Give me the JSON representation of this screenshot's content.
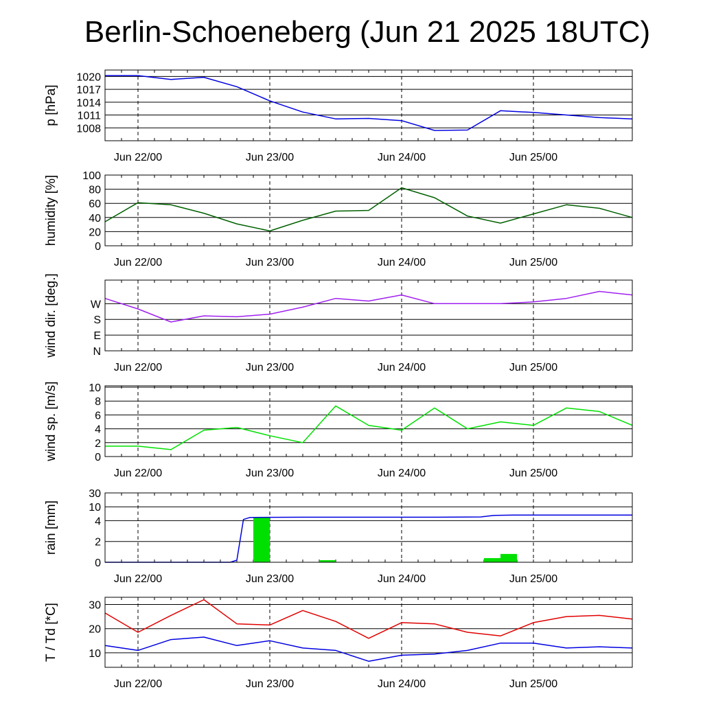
{
  "title": "Berlin-Schoeneberg (Jun 21 2025 18UTC)",
  "chart_data": [
    {
      "type": "line",
      "ylabel": "p [hPa]",
      "ylim": [
        1005,
        1021.5
      ],
      "yticks": [
        1008,
        1011,
        1014,
        1017,
        1020
      ],
      "ytick_labels": [
        "1008",
        "1011",
        "1014",
        "1017",
        "1020"
      ],
      "x_tick_labels": [
        "Jun 22/00",
        "Jun 23/00",
        "Jun 24/00",
        "Jun 25/00"
      ],
      "grid": "horizontal at y ticks, dashed vertical at midnight",
      "series": [
        {
          "color": "#0000e0",
          "x": [
            0,
            0.25,
            0.5,
            0.75,
            1.0,
            1.25,
            1.5,
            1.75,
            2.0,
            2.25,
            2.5,
            2.75,
            3.0,
            3.25,
            3.5,
            3.75,
            4.0
          ],
          "y": [
            1020.2,
            1020.2,
            1019.3,
            1019.8,
            1017.6,
            1014.3,
            1011.7,
            1010.1,
            1010.2,
            1009.7,
            1007.4,
            1007.5,
            1012.0,
            1011.6,
            1011.0,
            1010.4,
            1010.1
          ]
        }
      ]
    },
    {
      "type": "line",
      "ylabel": "humidity [%]",
      "ylim": [
        0,
        100
      ],
      "yticks": [
        0,
        20,
        40,
        60,
        80,
        100
      ],
      "ytick_labels": [
        "0",
        "20",
        "40",
        "60",
        "80",
        "100"
      ],
      "x_tick_labels": [
        "Jun 22/00",
        "Jun 23/00",
        "Jun 24/00",
        "Jun 25/00"
      ],
      "series": [
        {
          "color": "#006000",
          "x": [
            0,
            0.25,
            0.5,
            0.75,
            1.0,
            1.25,
            1.5,
            1.75,
            2.0,
            2.25,
            2.5,
            2.75,
            3.0,
            3.25,
            3.5,
            3.75,
            4.0
          ],
          "y": [
            34,
            61,
            58,
            46,
            31,
            21,
            36,
            49,
            50,
            82,
            68,
            42,
            32,
            45,
            58,
            53,
            40
          ]
        }
      ]
    },
    {
      "type": "line",
      "ylabel": "wind dir. [deg.]",
      "ylim": [
        0,
        405
      ],
      "yticks": [
        0,
        90,
        180,
        270
      ],
      "ytick_labels": [
        "N",
        "E",
        "S",
        "W"
      ],
      "x_tick_labels": [
        "Jun 22/00",
        "Jun 23/00",
        "Jun 24/00",
        "Jun 25/00"
      ],
      "series": [
        {
          "color": "#a020f0",
          "x": [
            0,
            0.25,
            0.5,
            0.75,
            1.0,
            1.25,
            1.5,
            1.75,
            2.0,
            2.25,
            2.5,
            2.75,
            3.0,
            3.25,
            3.5,
            3.75,
            4.0
          ],
          "y": [
            300,
            240,
            165,
            200,
            195,
            210,
            250,
            300,
            285,
            320,
            270,
            270,
            270,
            280,
            300,
            340,
            320
          ]
        }
      ]
    },
    {
      "type": "line",
      "ylabel": "wind sp. [m/s]",
      "ylim": [
        0,
        10.2
      ],
      "yticks": [
        0,
        2,
        4,
        6,
        8,
        10
      ],
      "ytick_labels": [
        "0",
        "2",
        "4",
        "6",
        "8",
        "10"
      ],
      "x_tick_labels": [
        "Jun 22/00",
        "Jun 23/00",
        "Jun 24/00",
        "Jun 25/00"
      ],
      "series": [
        {
          "color": "#00e000",
          "x": [
            0,
            0.25,
            0.5,
            0.75,
            1.0,
            1.25,
            1.5,
            1.75,
            2.0,
            2.25,
            2.5,
            2.75,
            3.0,
            3.25,
            3.5,
            3.75,
            4.0
          ],
          "y": [
            1.5,
            1.5,
            1.0,
            3.8,
            4.2,
            3.0,
            2.0,
            7.3,
            4.5,
            3.8,
            7.0,
            4.0,
            5.0,
            4.5,
            7.0,
            6.5,
            4.5
          ]
        }
      ]
    },
    {
      "type": "bar",
      "ylabel": "rain [mm]",
      "ylim": [
        0,
        30
      ],
      "yticks": [
        0,
        2,
        4,
        10,
        30
      ],
      "ytick_labels": [
        "0",
        "2",
        "4",
        "10",
        "30"
      ],
      "x_tick_labels": [
        "Jun 22/00",
        "Jun 23/00",
        "Jun 24/00",
        "Jun 25/00"
      ],
      "bars": {
        "color": "#00e000",
        "x": [
          1.125,
          1.625,
          2.875,
          3.0
        ],
        "width": 0.125,
        "values": [
          5.5,
          0.2,
          0.4,
          0.8
        ]
      },
      "series": [
        {
          "color": "#0000e0",
          "name": "",
          "x": [
            0,
            0.95,
            1.0,
            1.05,
            1.1,
            1.5,
            2.0,
            2.5,
            2.85,
            2.95,
            3.1,
            4.0
          ],
          "y": [
            0,
            0,
            0.2,
            4.5,
            5.4,
            5.5,
            5.5,
            5.5,
            5.6,
            6.3,
            6.4,
            6.4
          ]
        }
      ]
    },
    {
      "type": "line",
      "ylabel": "T / Td [*C]",
      "ylim": [
        4,
        33
      ],
      "yticks": [
        10,
        20,
        30
      ],
      "ytick_labels": [
        "10",
        "20",
        "30"
      ],
      "x_tick_labels": [
        "Jun 22/00",
        "Jun 23/00",
        "Jun 24/00",
        "Jun 25/00"
      ],
      "series": [
        {
          "color": "#e00000",
          "x": [
            0,
            0.25,
            0.5,
            0.75,
            1.0,
            1.25,
            1.5,
            1.75,
            2.0,
            2.25,
            2.5,
            2.75,
            3.0,
            3.25,
            3.5,
            3.75,
            4.0
          ],
          "y": [
            26.5,
            18.5,
            25.5,
            32.0,
            22.0,
            21.5,
            27.5,
            23.0,
            16.0,
            22.5,
            22.0,
            18.5,
            17.0,
            22.5,
            25.0,
            25.5,
            24.0
          ]
        },
        {
          "color": "#0000e0",
          "x": [
            0,
            0.25,
            0.5,
            0.75,
            1.0,
            1.25,
            1.5,
            1.75,
            2.0,
            2.25,
            2.5,
            2.75,
            3.0,
            3.25,
            3.5,
            3.75,
            4.0
          ],
          "y": [
            13.0,
            11.0,
            15.5,
            16.5,
            13.0,
            15.0,
            12.0,
            11.0,
            6.5,
            9.0,
            9.5,
            11.0,
            14.0,
            14.0,
            12.0,
            12.5,
            12.0
          ]
        }
      ]
    }
  ]
}
